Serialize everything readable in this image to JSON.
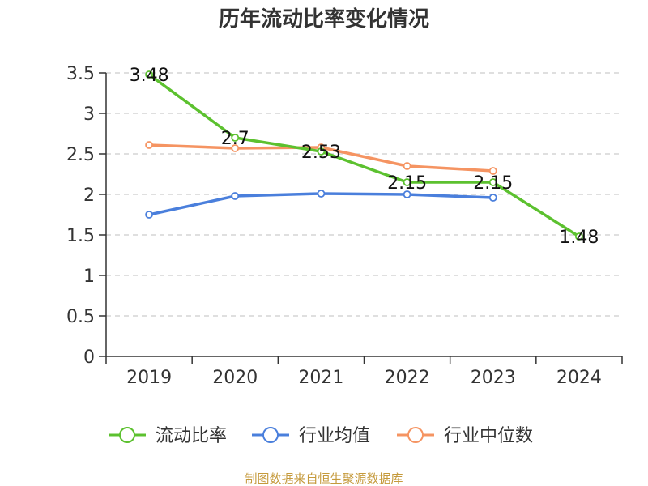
{
  "colors": {
    "background": "#ffffff",
    "axis": "#333333",
    "grid": "#cccccc",
    "footer": "#c59a3c"
  },
  "chart_data": {
    "type": "line",
    "title": "历年流动比率变化情况",
    "xlabel": "",
    "ylabel": "",
    "categories": [
      "2019",
      "2020",
      "2021",
      "2022",
      "2023",
      "2024"
    ],
    "y_ticks": [
      "0",
      "0.5",
      "1",
      "1.5",
      "2",
      "2.5",
      "3",
      "3.5"
    ],
    "ylim": [
      0,
      3.5
    ],
    "grid": true,
    "legend_position": "bottom",
    "series": [
      {
        "name": "流动比率",
        "color": "#5cc12f",
        "values": [
          3.48,
          2.7,
          2.53,
          2.15,
          2.15,
          1.48
        ],
        "labels": [
          "3.48",
          "2.7",
          "2.53",
          "2.15",
          "2.15",
          "1.48"
        ]
      },
      {
        "name": "行业均值",
        "color": "#4a7fdc",
        "values": [
          1.75,
          1.98,
          2.01,
          2.0,
          1.96,
          null
        ],
        "labels": null
      },
      {
        "name": "行业中位数",
        "color": "#f59462",
        "values": [
          2.61,
          2.57,
          2.58,
          2.35,
          2.29,
          null
        ],
        "labels": null
      }
    ]
  },
  "footer": {
    "source": "制图数据来自恒生聚源数据库"
  }
}
